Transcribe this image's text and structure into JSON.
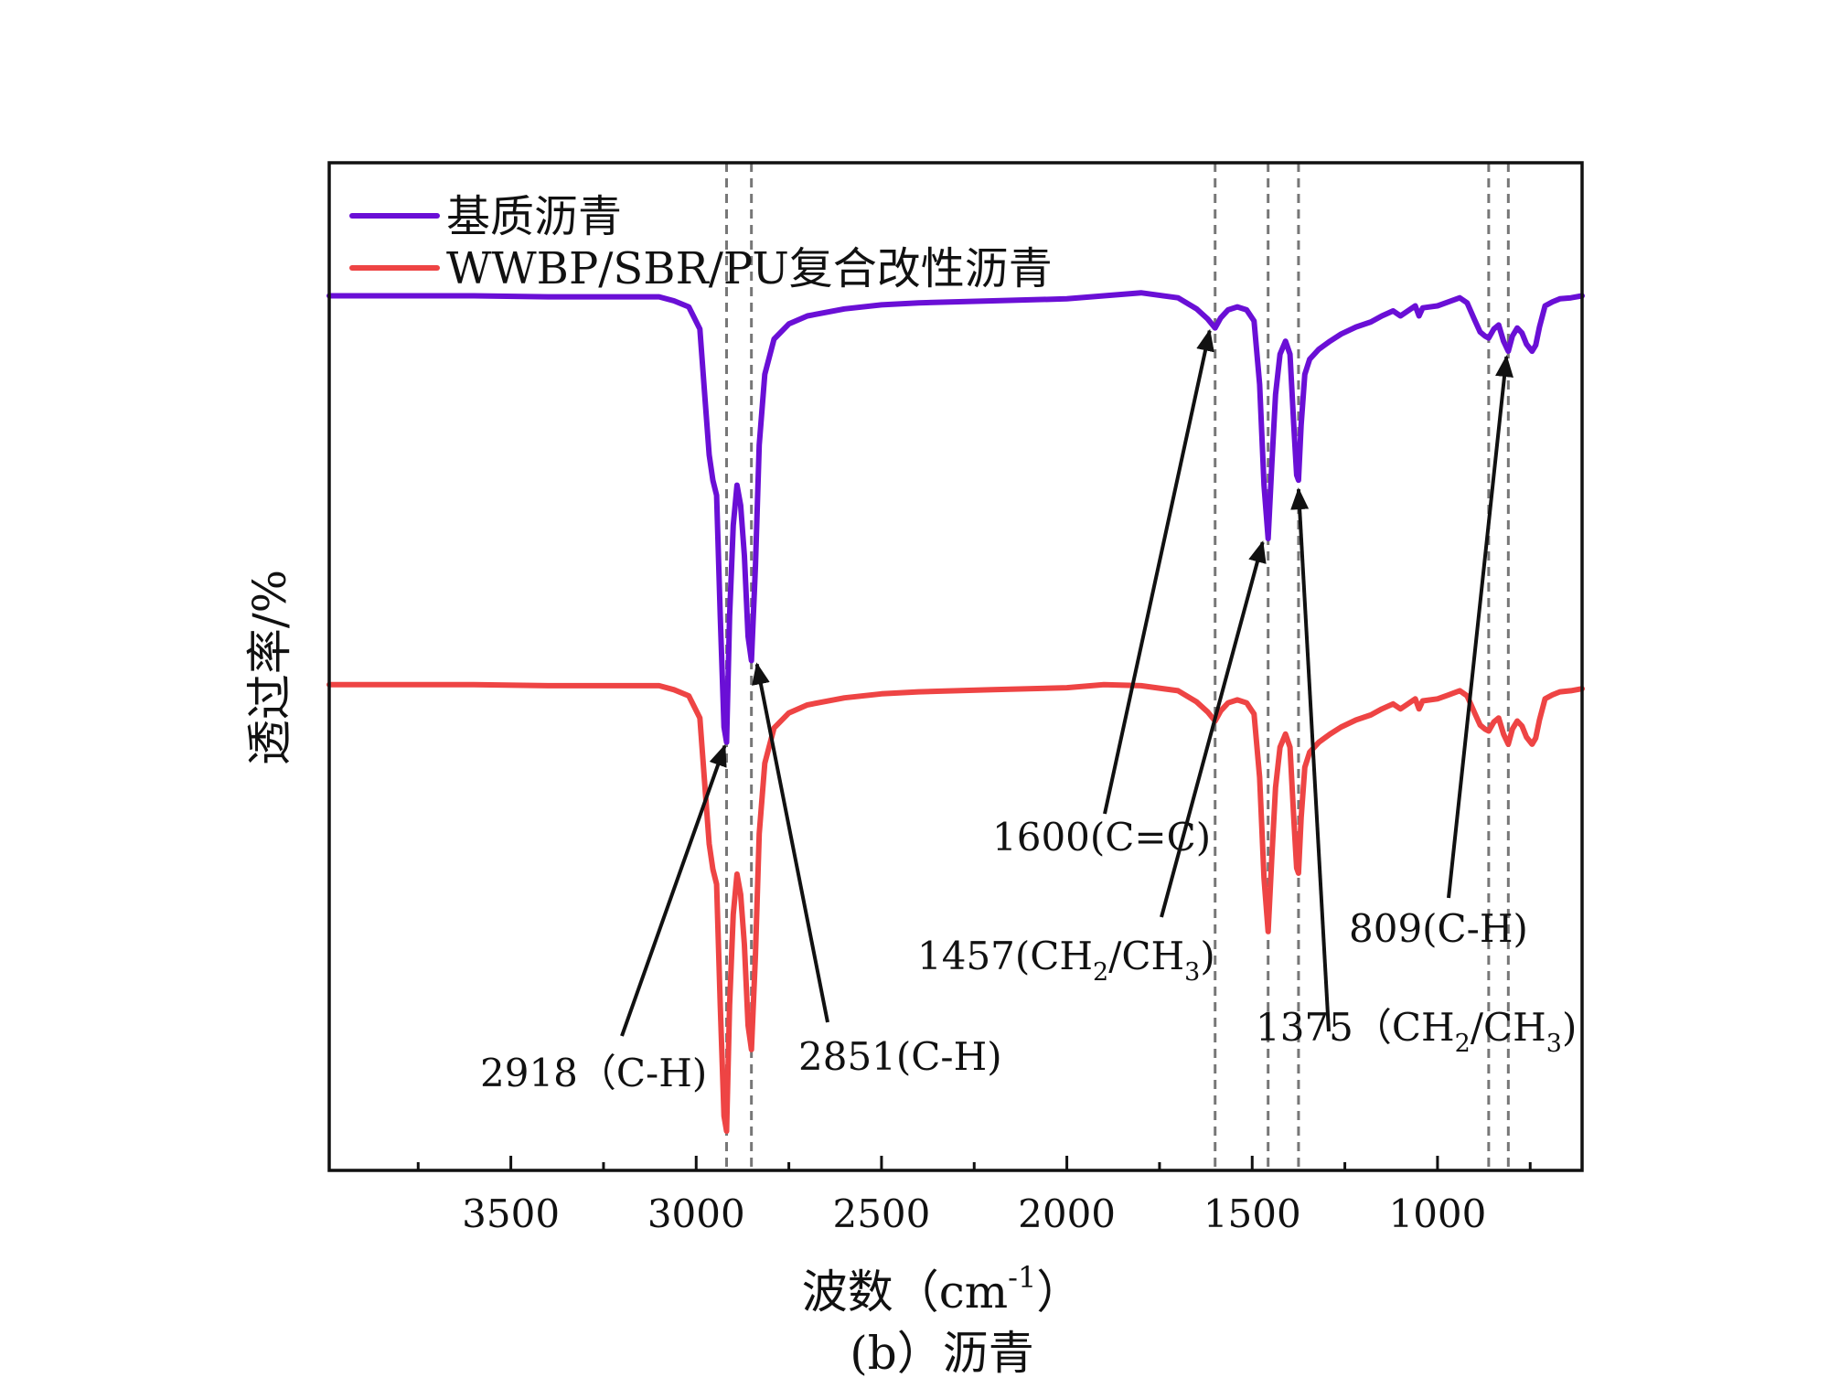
{
  "chart_data": {
    "type": "line",
    "title": "",
    "caption": "(b）沥青",
    "xlabel": "波数（cm",
    "xlabel_sup": "-1",
    "xlabel_close": "）",
    "ylabel": "透过率/%",
    "xlim": [
      3990,
      610
    ],
    "ylim": [
      0,
      100
    ],
    "grid": false,
    "legend_position": "top-left",
    "x_ticks": [
      {
        "value": 3500,
        "label": "3500"
      },
      {
        "value": 3000,
        "label": "3000"
      },
      {
        "value": 2500,
        "label": "2500"
      },
      {
        "value": 2000,
        "label": "2000"
      },
      {
        "value": 1500,
        "label": "1500"
      },
      {
        "value": 1000,
        "label": "1000"
      }
    ],
    "minor_ticks": [
      3750,
      3250,
      2750,
      2250,
      1750,
      1250,
      750
    ],
    "reference_lines": [
      2918,
      2851,
      1600,
      1457,
      1375,
      862,
      809
    ],
    "series": [
      {
        "name": "基质沥青",
        "color": "#6a0fd6",
        "points": [
          [
            3990,
            86.8
          ],
          [
            3800,
            86.8
          ],
          [
            3600,
            86.8
          ],
          [
            3400,
            86.7
          ],
          [
            3200,
            86.7
          ],
          [
            3100,
            86.7
          ],
          [
            3060,
            86.3
          ],
          [
            3020,
            85.7
          ],
          [
            2990,
            83.5
          ],
          [
            2975,
            76
          ],
          [
            2965,
            71
          ],
          [
            2955,
            68.5
          ],
          [
            2945,
            67
          ],
          [
            2935,
            55
          ],
          [
            2925,
            44
          ],
          [
            2918,
            42.5
          ],
          [
            2910,
            55
          ],
          [
            2900,
            64
          ],
          [
            2890,
            68
          ],
          [
            2880,
            66
          ],
          [
            2870,
            61
          ],
          [
            2860,
            53
          ],
          [
            2851,
            50.6
          ],
          [
            2840,
            60
          ],
          [
            2830,
            72
          ],
          [
            2815,
            79
          ],
          [
            2790,
            82.5
          ],
          [
            2750,
            84
          ],
          [
            2700,
            84.8
          ],
          [
            2600,
            85.5
          ],
          [
            2500,
            85.9
          ],
          [
            2400,
            86.1
          ],
          [
            2200,
            86.3
          ],
          [
            2000,
            86.5
          ],
          [
            1900,
            86.8
          ],
          [
            1800,
            87.1
          ],
          [
            1700,
            86.6
          ],
          [
            1650,
            85.5
          ],
          [
            1620,
            84.5
          ],
          [
            1600,
            83.6
          ],
          [
            1585,
            84.6
          ],
          [
            1565,
            85.4
          ],
          [
            1540,
            85.7
          ],
          [
            1515,
            85.4
          ],
          [
            1495,
            84.3
          ],
          [
            1480,
            78
          ],
          [
            1468,
            68
          ],
          [
            1457,
            62.7
          ],
          [
            1447,
            70
          ],
          [
            1437,
            77
          ],
          [
            1425,
            81
          ],
          [
            1410,
            82.3
          ],
          [
            1398,
            81
          ],
          [
            1388,
            74
          ],
          [
            1380,
            69
          ],
          [
            1375,
            68.5
          ],
          [
            1368,
            74
          ],
          [
            1358,
            79
          ],
          [
            1345,
            80.5
          ],
          [
            1320,
            81.5
          ],
          [
            1290,
            82.3
          ],
          [
            1260,
            83
          ],
          [
            1220,
            83.7
          ],
          [
            1180,
            84.2
          ],
          [
            1150,
            84.8
          ],
          [
            1120,
            85.3
          ],
          [
            1100,
            84.8
          ],
          [
            1080,
            85.3
          ],
          [
            1060,
            85.8
          ],
          [
            1050,
            84.8
          ],
          [
            1040,
            85.6
          ],
          [
            1000,
            85.8
          ],
          [
            970,
            86.2
          ],
          [
            940,
            86.6
          ],
          [
            920,
            86.1
          ],
          [
            900,
            84.4
          ],
          [
            885,
            83.2
          ],
          [
            872,
            82.8
          ],
          [
            862,
            82.6
          ],
          [
            848,
            83.5
          ],
          [
            835,
            83.9
          ],
          [
            822,
            82.3
          ],
          [
            809,
            81.3
          ],
          [
            798,
            82.8
          ],
          [
            785,
            83.6
          ],
          [
            772,
            83.1
          ],
          [
            760,
            82
          ],
          [
            745,
            81.3
          ],
          [
            735,
            81.9
          ],
          [
            725,
            83.7
          ],
          [
            710,
            85.8
          ],
          [
            690,
            86.2
          ],
          [
            670,
            86.5
          ],
          [
            640,
            86.6
          ],
          [
            610,
            86.8
          ]
        ]
      },
      {
        "name": "WWBP/SBR/PU复合改性沥青",
        "color": "#ee4444",
        "points": [
          [
            3990,
            48.2
          ],
          [
            3800,
            48.2
          ],
          [
            3600,
            48.2
          ],
          [
            3400,
            48.1
          ],
          [
            3200,
            48.1
          ],
          [
            3100,
            48.1
          ],
          [
            3060,
            47.7
          ],
          [
            3020,
            47.1
          ],
          [
            2990,
            44.9
          ],
          [
            2975,
            37.4
          ],
          [
            2965,
            32.4
          ],
          [
            2955,
            29.9
          ],
          [
            2945,
            28.4
          ],
          [
            2935,
            16.4
          ],
          [
            2925,
            5.4
          ],
          [
            2918,
            3.9
          ],
          [
            2910,
            16.4
          ],
          [
            2900,
            25.4
          ],
          [
            2890,
            29.4
          ],
          [
            2880,
            27.4
          ],
          [
            2870,
            22.4
          ],
          [
            2860,
            14.4
          ],
          [
            2851,
            12
          ],
          [
            2840,
            21.4
          ],
          [
            2830,
            33.4
          ],
          [
            2815,
            40.4
          ],
          [
            2790,
            43.9
          ],
          [
            2750,
            45.4
          ],
          [
            2700,
            46.2
          ],
          [
            2600,
            46.9
          ],
          [
            2500,
            47.3
          ],
          [
            2400,
            47.5
          ],
          [
            2200,
            47.7
          ],
          [
            2000,
            47.9
          ],
          [
            1900,
            48.2
          ],
          [
            1800,
            48.1
          ],
          [
            1700,
            47.6
          ],
          [
            1650,
            46.5
          ],
          [
            1620,
            45.5
          ],
          [
            1600,
            44.6
          ],
          [
            1585,
            45.6
          ],
          [
            1565,
            46.4
          ],
          [
            1540,
            46.7
          ],
          [
            1515,
            46.4
          ],
          [
            1495,
            45.3
          ],
          [
            1480,
            39
          ],
          [
            1468,
            29
          ],
          [
            1457,
            23.7
          ],
          [
            1447,
            31
          ],
          [
            1437,
            38
          ],
          [
            1425,
            42
          ],
          [
            1410,
            43.3
          ],
          [
            1398,
            42
          ],
          [
            1388,
            35
          ],
          [
            1380,
            30
          ],
          [
            1375,
            29.5
          ],
          [
            1368,
            35
          ],
          [
            1358,
            40
          ],
          [
            1345,
            41.5
          ],
          [
            1320,
            42.5
          ],
          [
            1290,
            43.3
          ],
          [
            1260,
            44
          ],
          [
            1220,
            44.7
          ],
          [
            1180,
            45.2
          ],
          [
            1150,
            45.8
          ],
          [
            1120,
            46.3
          ],
          [
            1100,
            45.8
          ],
          [
            1080,
            46.3
          ],
          [
            1060,
            46.8
          ],
          [
            1050,
            45.8
          ],
          [
            1040,
            46.6
          ],
          [
            1000,
            46.8
          ],
          [
            970,
            47.2
          ],
          [
            940,
            47.6
          ],
          [
            920,
            47.1
          ],
          [
            900,
            45.4
          ],
          [
            885,
            44.2
          ],
          [
            872,
            43.8
          ],
          [
            862,
            43.6
          ],
          [
            848,
            44.5
          ],
          [
            835,
            44.9
          ],
          [
            822,
            43.3
          ],
          [
            809,
            42.3
          ],
          [
            798,
            43.8
          ],
          [
            785,
            44.6
          ],
          [
            772,
            44.1
          ],
          [
            760,
            43
          ],
          [
            745,
            42.3
          ],
          [
            735,
            42.9
          ],
          [
            725,
            44.7
          ],
          [
            710,
            46.8
          ],
          [
            690,
            47.2
          ],
          [
            670,
            47.5
          ],
          [
            640,
            47.6
          ],
          [
            610,
            47.8
          ]
        ]
      }
    ],
    "annotations": [
      {
        "label": "2918（C-H)",
        "peak_x": 2918,
        "series": 0
      },
      {
        "label": "2851(C-H)",
        "peak_x": 2851,
        "series": 0
      },
      {
        "label": "1600(C=C)",
        "peak_x": 1600,
        "series": 0
      },
      {
        "label": "1457(CH",
        "sub1": "2",
        "mid": "/CH",
        "sub2": "3",
        "tail": ")",
        "peak_x": 1457,
        "series": 0
      },
      {
        "label": "1375（CH",
        "sub1": "2",
        "mid": "/CH",
        "sub2": "3",
        "tail": ")",
        "peak_x": 1375,
        "series": 0
      },
      {
        "label": "809(C-H)",
        "peak_x": 809,
        "series": 0
      }
    ]
  }
}
